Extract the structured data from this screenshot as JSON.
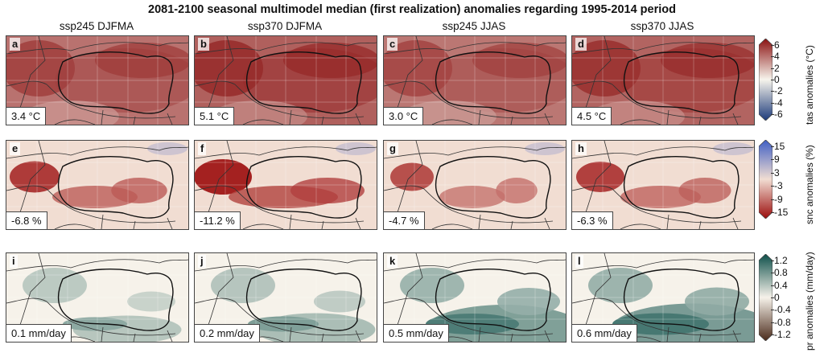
{
  "title": "2081-2100 seasonal multimodel median (first realization) anomalies regarding 1995-2014 period",
  "columns": [
    "ssp245 DJFMA",
    "ssp370 DJFMA",
    "ssp245 JJAS",
    "ssp370 JJAS"
  ],
  "rows": [
    {
      "variable": "tas",
      "colorbar_label": "tas anomalies (°C)",
      "ticks": [
        "6",
        "4",
        "2",
        "0",
        "-2",
        "-4",
        "-6"
      ],
      "colors": {
        "low": "#1c3a7a",
        "mid": "#f7f4ec",
        "high": "#8a1010"
      },
      "panels": [
        {
          "letter": "a",
          "mean": "3.4 °C",
          "level": 0.55
        },
        {
          "letter": "b",
          "mean": "5.1 °C",
          "level": 0.75
        },
        {
          "letter": "c",
          "mean": "3.0 °C",
          "level": 0.5
        },
        {
          "letter": "d",
          "mean": "4.5 °C",
          "level": 0.7
        }
      ]
    },
    {
      "variable": "snc",
      "colorbar_label": "snc anomalies (%)",
      "ticks": [
        "15",
        "9",
        "3",
        "-3",
        "-9",
        "-15"
      ],
      "colors": {
        "low": "#9b0c0c",
        "mid": "#f1ddd2",
        "high": "#3f5fc4"
      },
      "panels": [
        {
          "letter": "e",
          "mean": "-6.8 %",
          "level": 0.55
        },
        {
          "letter": "f",
          "mean": "-11.2 %",
          "level": 0.8
        },
        {
          "letter": "g",
          "mean": "-4.7 %",
          "level": 0.35
        },
        {
          "letter": "h",
          "mean": "-6.3 %",
          "level": 0.5
        }
      ]
    },
    {
      "variable": "pr",
      "colorbar_label": "pr anomalies (mm/day)",
      "ticks": [
        "1.2",
        "0.8",
        "0.4",
        "0",
        "-0.4",
        "-0.8",
        "-1.2"
      ],
      "colors": {
        "low": "#4a2a1a",
        "mid": "#f6f2ea",
        "high": "#0d4f4a"
      },
      "panels": [
        {
          "letter": "i",
          "mean": "0.1 mm/day",
          "level": 0.25
        },
        {
          "letter": "j",
          "mean": "0.2 mm/day",
          "level": 0.35
        },
        {
          "letter": "k",
          "mean": "0.5 mm/day",
          "level": 0.7
        },
        {
          "letter": "l",
          "mean": "0.6 mm/day",
          "level": 0.75
        }
      ]
    }
  ]
}
